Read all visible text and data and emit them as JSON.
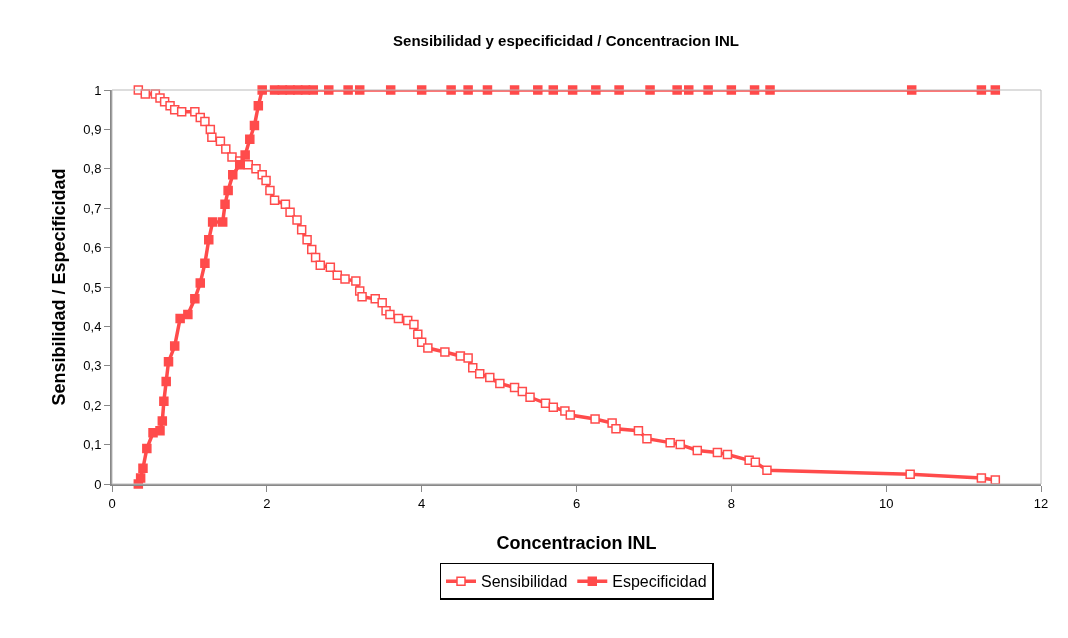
{
  "chart_data": {
    "type": "line",
    "title": "Sensibilidad y especificidad / Concentracion INL",
    "xlabel": "Concentracion INL",
    "ylabel": "Sensibilidad / Especificidad",
    "xlim": [
      0,
      12
    ],
    "xticks": [
      0,
      2,
      4,
      6,
      8,
      10,
      12
    ],
    "ylim": [
      0,
      1
    ],
    "yticks": [
      0,
      {
        "value": 0.1,
        "label": "0,1"
      },
      {
        "value": 0.2,
        "label": "0,2"
      },
      {
        "value": 0.3,
        "label": "0,3"
      },
      {
        "value": 0.4,
        "label": "0,4"
      },
      {
        "value": 0.5,
        "label": "0,5"
      },
      {
        "value": 0.6,
        "label": "0,6"
      },
      {
        "value": 0.7,
        "label": "0,7"
      },
      {
        "value": 0.8,
        "label": "0,8"
      },
      {
        "value": 0.9,
        "label": "0,9"
      },
      1
    ],
    "grid": false,
    "legend": "bottom",
    "line_style": "solid",
    "series": [
      {
        "name": "Sensibilidad",
        "color": "#ff4b4b",
        "marker": "square-open",
        "x": [
          0.34,
          0.43,
          0.56,
          0.62,
          0.68,
          0.75,
          0.81,
          0.9,
          1.07,
          1.14,
          1.2,
          1.27,
          1.29,
          1.4,
          1.47,
          1.55,
          1.65,
          1.76,
          1.86,
          1.94,
          1.99,
          2.04,
          2.1,
          2.24,
          2.3,
          2.39,
          2.45,
          2.52,
          2.58,
          2.63,
          2.69,
          2.82,
          2.91,
          3.01,
          3.15,
          3.2,
          3.23,
          3.4,
          3.49,
          3.54,
          3.59,
          3.7,
          3.82,
          3.9,
          3.95,
          4.0,
          4.08,
          4.3,
          4.5,
          4.6,
          4.66,
          4.75,
          4.88,
          5.01,
          5.2,
          5.3,
          5.4,
          5.6,
          5.7,
          5.85,
          5.92,
          6.24,
          6.46,
          6.51,
          6.8,
          6.91,
          7.21,
          7.34,
          7.56,
          7.82,
          7.95,
          8.23,
          8.31,
          8.46,
          10.31,
          11.23,
          11.41
        ],
        "values": [
          1,
          0.99,
          0.99,
          0.98,
          0.97,
          0.96,
          0.95,
          0.945,
          0.945,
          0.93,
          0.92,
          0.9,
          0.88,
          0.87,
          0.85,
          0.83,
          0.82,
          0.81,
          0.8,
          0.785,
          0.77,
          0.745,
          0.72,
          0.71,
          0.69,
          0.67,
          0.645,
          0.62,
          0.595,
          0.575,
          0.555,
          0.55,
          0.53,
          0.52,
          0.515,
          0.49,
          0.475,
          0.47,
          0.46,
          0.44,
          0.43,
          0.42,
          0.415,
          0.405,
          0.38,
          0.36,
          0.345,
          0.335,
          0.325,
          0.32,
          0.295,
          0.28,
          0.27,
          0.255,
          0.245,
          0.235,
          0.22,
          0.205,
          0.195,
          0.185,
          0.175,
          0.165,
          0.155,
          0.14,
          0.135,
          0.115,
          0.105,
          0.1,
          0.085,
          0.08,
          0.075,
          0.06,
          0.055,
          0.035,
          0.025,
          0.015,
          0.01
        ]
      },
      {
        "name": "Especificidad",
        "color": "#ff4b4b",
        "marker": "square",
        "x": [
          0.34,
          0.37,
          0.4,
          0.45,
          0.53,
          0.62,
          0.65,
          0.67,
          0.7,
          0.73,
          0.81,
          0.88,
          0.98,
          1.07,
          1.14,
          1.2,
          1.25,
          1.3,
          1.43,
          1.46,
          1.5,
          1.56,
          1.65,
          1.72,
          1.78,
          1.84,
          1.89,
          1.94,
          2.1,
          2.2,
          2.3,
          2.4,
          2.5,
          2.6,
          2.8,
          3.05,
          3.2,
          3.6,
          4.0,
          4.38,
          4.6,
          4.85,
          5.2,
          5.5,
          5.7,
          5.95,
          6.25,
          6.55,
          6.95,
          7.3,
          7.45,
          7.7,
          8.0,
          8.3,
          8.5,
          10.33,
          11.23,
          11.41
        ],
        "values": [
          0,
          0.015,
          0.04,
          0.09,
          0.13,
          0.135,
          0.16,
          0.21,
          0.26,
          0.31,
          0.35,
          0.42,
          0.43,
          0.47,
          0.51,
          0.56,
          0.62,
          0.665,
          0.665,
          0.71,
          0.745,
          0.785,
          0.81,
          0.835,
          0.875,
          0.91,
          0.96,
          1,
          1,
          1,
          1,
          1,
          1,
          1,
          1,
          1,
          1,
          1,
          1,
          1,
          1,
          1,
          1,
          1,
          1,
          1,
          1,
          1,
          1,
          1,
          1,
          1,
          1,
          1,
          1,
          1,
          1,
          1
        ]
      }
    ]
  }
}
